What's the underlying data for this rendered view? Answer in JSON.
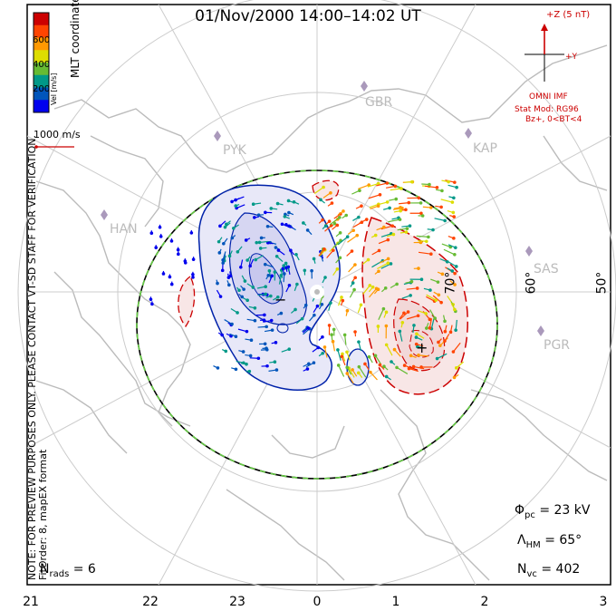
{
  "title": "01/Nov/2000 14:00–14:02 UT",
  "left_notes": {
    "line1": "NOTE: FOR PREVIEW PURPOSES ONLY. PLEASE CONTACT VT-SD STAFF FOR VERIFICATION.",
    "line2": "FitOrder: 8, mapEX format"
  },
  "coord_label": "MLT coordinates",
  "velocity_scale": {
    "unit_label": "Vel [m/s]",
    "ticks": [
      "600",
      "400",
      "200"
    ],
    "colors": [
      "#cc0000",
      "#ff4400",
      "#ff9900",
      "#dddd00",
      "#66bb33",
      "#009988",
      "#0055bb",
      "#0000ee"
    ]
  },
  "reference_vector_label": "1000 m/s",
  "stations": [
    "GBR",
    "PYK",
    "KAP",
    "HAN",
    "SAS",
    "PGR"
  ],
  "latitude_labels": [
    "70°",
    "60°",
    "50°"
  ],
  "mlt_ticks": [
    "21",
    "22",
    "23",
    "0",
    "1",
    "2",
    "3"
  ],
  "imf": {
    "z_label": "+Z (5 nT)",
    "y_label": "+Y",
    "source": "OMNI IMF",
    "model": "Stat Mod: RG96",
    "condition": "Bz+, 0<BT<4"
  },
  "stats": {
    "phi_symbol": "Φ",
    "phi_sub": "pc",
    "phi_value": "= 23 kV",
    "lambda_symbol": "Λ",
    "lambda_sub": "HM",
    "lambda_value": "= 65°",
    "nvc_symbol": "N",
    "nvc_sub": "vc",
    "nvc_value": "= 402",
    "nrads_symbol": "N",
    "nrads_sub": "rads",
    "nrads_value": "= 6"
  },
  "potential_markers": {
    "min": "−",
    "max": "+"
  },
  "colors": {
    "coast": "#bbbbbb",
    "grid": "#cccccc",
    "negative_contour": "#0022aa",
    "negative_fill": "#e8e8f8",
    "positive_contour": "#cc0000",
    "positive_fill": "#f8e6e6",
    "station": "#aa99bb",
    "boundary_dash": "#66cc44"
  }
}
